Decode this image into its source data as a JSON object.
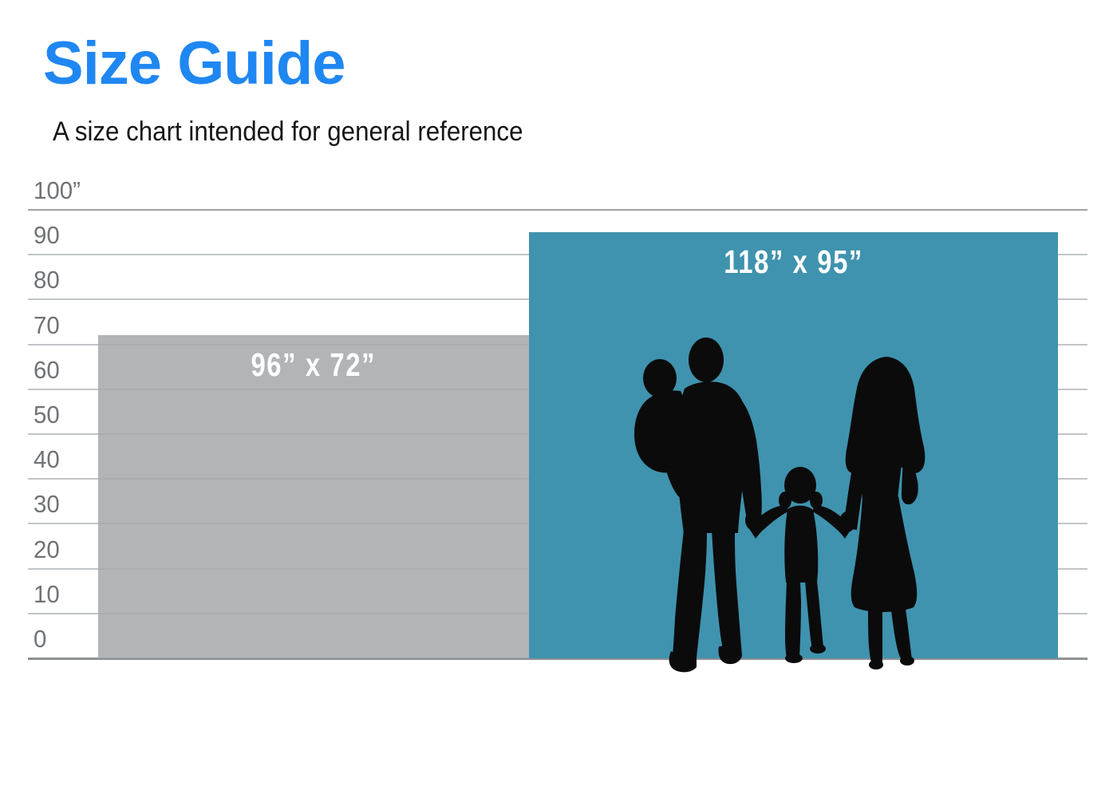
{
  "page": {
    "title": "Size Guide",
    "subtitle": "A size chart intended for general reference"
  },
  "colors": {
    "title_blue": "#1f87f2",
    "subtitle_text": "#161616",
    "tick_text": "#707376",
    "grid_line": "#c2c5c7",
    "grid_line_top": "#9fa3a6",
    "grid_baseline": "#8e9194",
    "bar_small_fill": "#b2b5b8",
    "bar_large_fill": "#3f93ae",
    "bar_label_text": "#ffffff",
    "silhouette_black": "#0b0b0c",
    "background": "#ffffff"
  },
  "chart_data": {
    "type": "bar",
    "title": "Size Guide",
    "subtitle": "A size chart intended for general reference",
    "unit": "inches",
    "ylim": [
      0,
      100
    ],
    "ytick_values": [
      100,
      90,
      80,
      70,
      60,
      50,
      40,
      30,
      20,
      10,
      0
    ],
    "ytick_labels": [
      "100”",
      "90",
      "80",
      "70",
      "60",
      "50",
      "40",
      "30",
      "20",
      "10",
      "0"
    ],
    "grid": true,
    "legend": "none",
    "series": [
      {
        "label": "96” x 72”",
        "width_in": 96,
        "height_in": 72,
        "color": "#b2b5b8",
        "label_color": "#ffffff"
      },
      {
        "label": "118” x 95”",
        "width_in": 118,
        "height_in": 95,
        "color": "#3f93ae",
        "label_color": "#ffffff"
      }
    ],
    "scale_reference": "family-silhouette"
  }
}
